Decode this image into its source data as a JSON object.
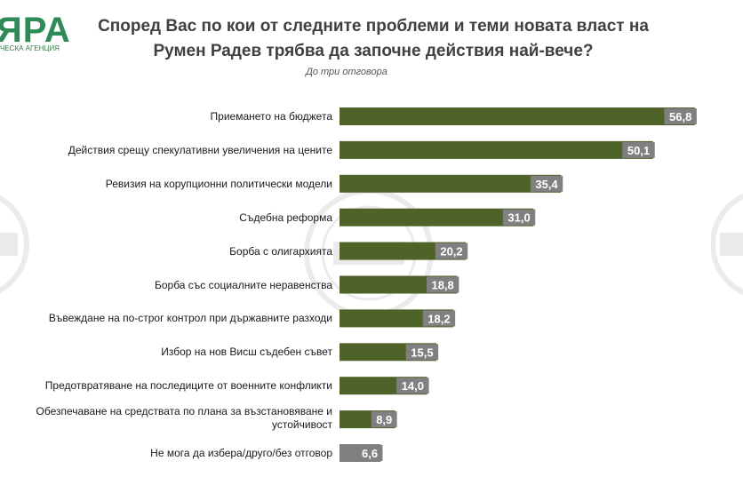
{
  "logo": {
    "text": "ЯРА",
    "subtext": "ЧЕСКА АГЕНЦИЯ"
  },
  "chart_data": {
    "type": "bar",
    "orientation": "horizontal",
    "title": "Според Вас по кои от следните проблеми и теми новата власт на Румен Радев трябва да започне действия най-вече?",
    "subtitle": "До три отговора",
    "categories": [
      "Приемането на бюджета",
      "Действия срещу спекулативни увеличения на цените",
      "Ревизия на корупционни политически модели",
      "Съдебна реформа",
      "Борба с олигархията",
      "Борба със социалните неравенства",
      "Въвеждане на по-строг контрол при държавните разходи",
      "Избор на нов Висш съдебен съвет",
      "Предотвратяване на последиците от военните конфликти",
      "Обезпечаване на средствата по плана за възстановяване и устойчивост",
      "Не мога да избера/друго/без отговор"
    ],
    "values": [
      56.8,
      50.1,
      35.4,
      31.0,
      20.2,
      18.8,
      18.2,
      15.5,
      14.0,
      8.9,
      6.6
    ],
    "value_labels": [
      "56,8",
      "50,1",
      "35,4",
      "31,0",
      "20,2",
      "18,8",
      "18,2",
      "15,5",
      "14,0",
      "8,9",
      "6,6"
    ],
    "xlim": [
      0,
      60
    ],
    "grid": false,
    "bar_color": "#4f6228",
    "last_bar_color": "#808080",
    "label_box_color": "#808080"
  }
}
